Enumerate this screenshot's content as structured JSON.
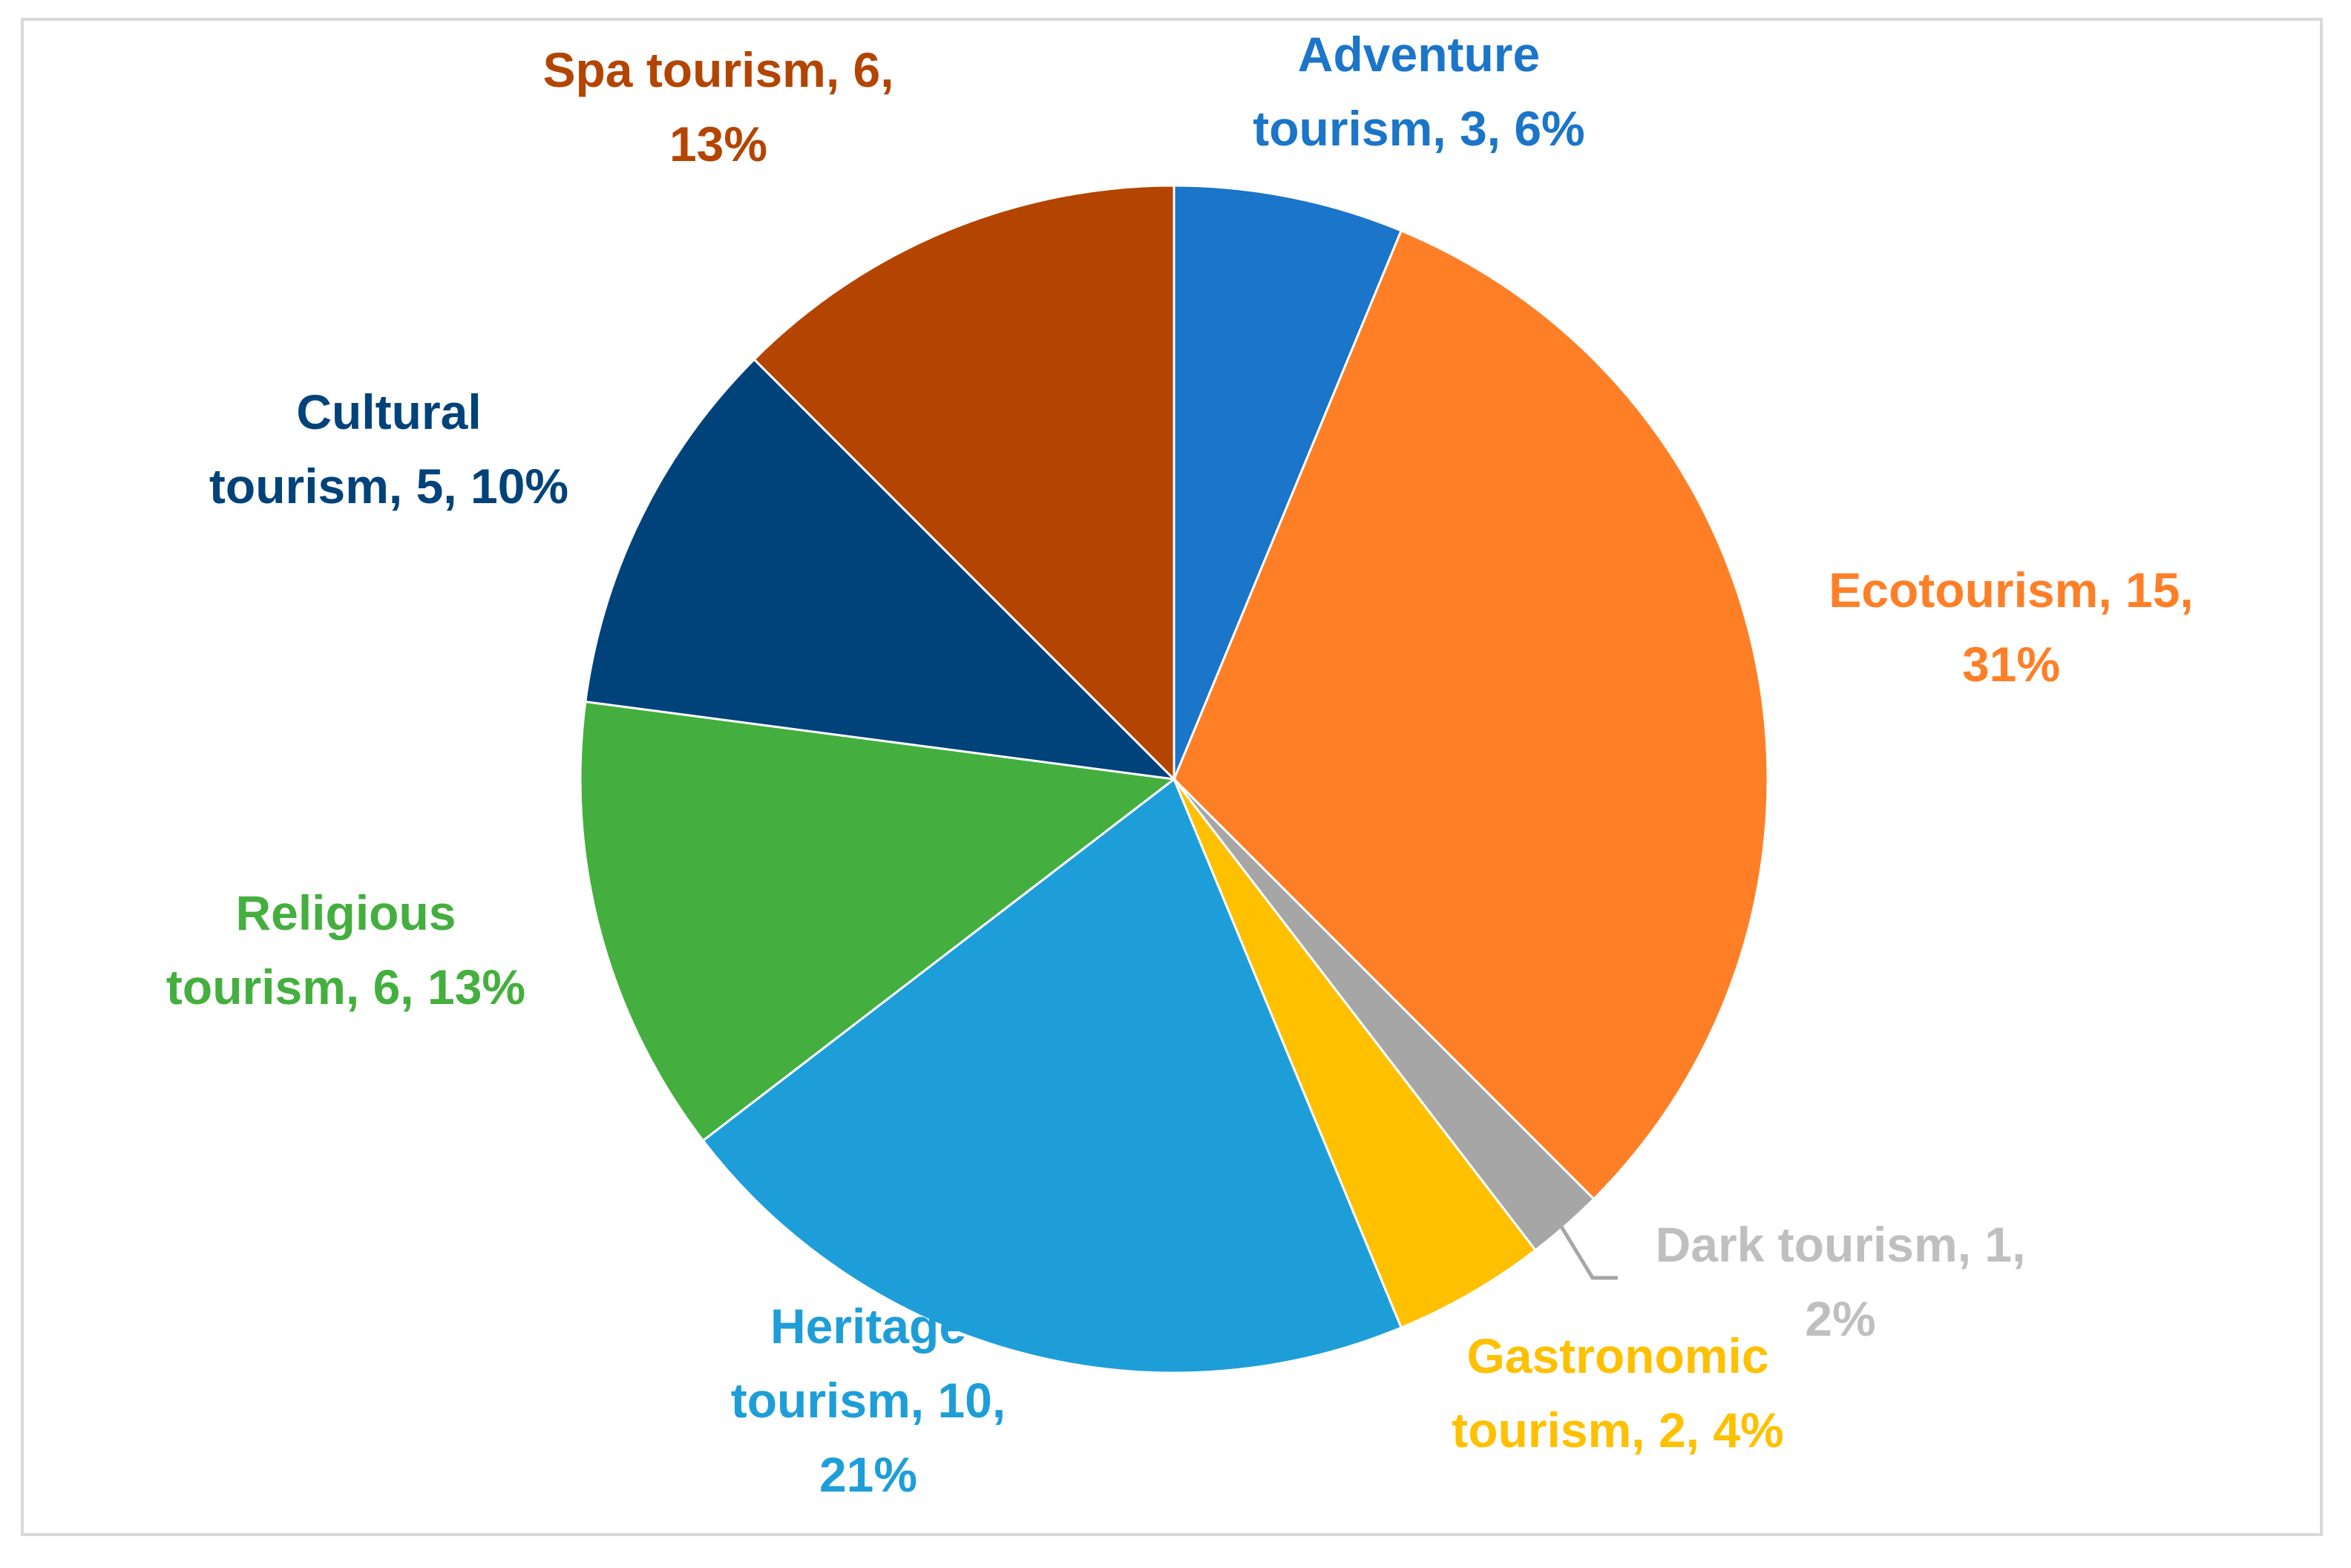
{
  "chart_data": {
    "type": "pie",
    "title": "",
    "start_angle_deg": 0,
    "direction": "clockwise",
    "slices": [
      {
        "label": "Adventure tourism",
        "value": 3,
        "percent": "6%",
        "color": "#1b75c8",
        "label_lines": [
          "Adventure",
          "tourism, 3, 6%"
        ]
      },
      {
        "label": "Ecotourism",
        "value": 15,
        "percent": "31%",
        "color": "#ff7f27",
        "label_lines": [
          "Ecotourism, 15,",
          "31%"
        ]
      },
      {
        "label": "Dark tourism",
        "value": 1,
        "percent": "2%",
        "color": "#a6a6a6",
        "label_lines": [
          "Dark tourism, 1,",
          "2%"
        ]
      },
      {
        "label": "Gastronomic tourism",
        "value": 2,
        "percent": "4%",
        "color": "#ffc000",
        "label_lines": [
          "Gastronomic",
          "tourism, 2, 4%"
        ]
      },
      {
        "label": "Heritage tourism",
        "value": 10,
        "percent": "21%",
        "color": "#1e9ed8",
        "label_lines": [
          "Heritage",
          "tourism, 10,",
          "21%"
        ]
      },
      {
        "label": "Religious tourism",
        "value": 6,
        "percent": "13%",
        "color": "#44af3e",
        "label_lines": [
          "Religious",
          "tourism, 6, 13%"
        ]
      },
      {
        "label": "Cultural tourism",
        "value": 5,
        "percent": "10%",
        "color": "#00427a",
        "label_lines": [
          "Cultural",
          "tourism, 5, 10%"
        ]
      },
      {
        "label": "Spa tourism",
        "value": 6,
        "percent": "13%",
        "color": "#b34500",
        "label_lines": [
          "Spa tourism, 6,",
          "13%"
        ]
      }
    ],
    "label_colors": {
      "Adventure tourism": "#1b75c8",
      "Ecotourism": "#ff7f27",
      "Dark tourism": "#bfbfbf",
      "Gastronomic tourism": "#ffc000",
      "Heritage tourism": "#1e9ed8",
      "Religious tourism": "#44af3e",
      "Cultural tourism": "#00427a",
      "Spa tourism": "#b34500"
    },
    "leader_line_color": "#a6a6a6"
  }
}
